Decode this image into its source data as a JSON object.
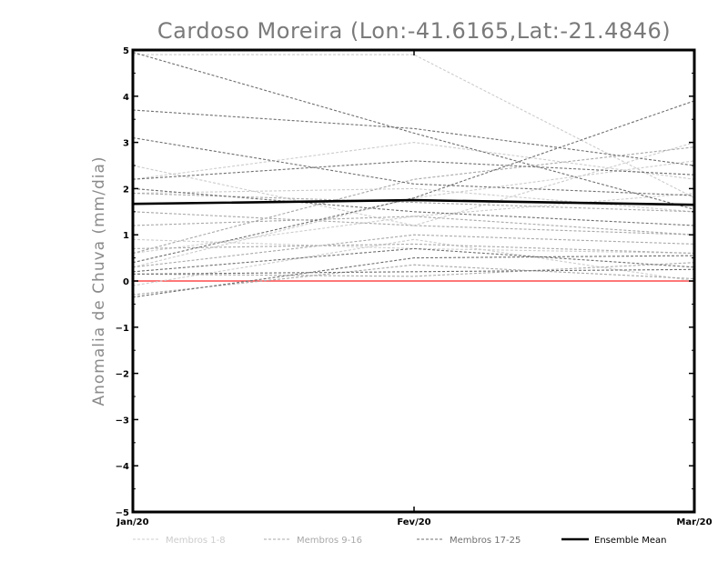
{
  "chart_data": {
    "type": "line",
    "title": "Cardoso Moreira (Lon:-41.6165,Lat:-21.4846)",
    "xlabel": "",
    "ylabel": "Anomalia de Chuva (mm/dia)",
    "categories": [
      "Jan/20",
      "Fev/20",
      "Mar/20"
    ],
    "ylim": [
      -5,
      5
    ],
    "yticks": [
      5,
      4,
      3,
      2,
      1,
      0,
      -1,
      -2,
      -3,
      -4,
      -5
    ],
    "ytick_labels": [
      "5",
      "4",
      "3",
      "2",
      "1",
      "0",
      "−1",
      "−2",
      "−3",
      "−4",
      "−5"
    ],
    "grid": false,
    "zero_line_color": "#ff4a4a",
    "groups": [
      {
        "key": "g1",
        "label": "Membros 1-8",
        "color": "#cccccc",
        "dashed": true
      },
      {
        "key": "g2",
        "label": "Membros 9-16",
        "color": "#a8a8a8",
        "dashed": true
      },
      {
        "key": "g3",
        "label": "Membros 17-25",
        "color": "#6f6f6f",
        "dashed": true
      },
      {
        "key": "mean",
        "label": "Ensemble Mean",
        "color": "#000000",
        "dashed": false
      }
    ],
    "series": [
      {
        "group": "g1",
        "values": [
          2.5,
          1.2,
          3.0
        ]
      },
      {
        "group": "g1",
        "values": [
          2.2,
          3.0,
          2.2
        ]
      },
      {
        "group": "g1",
        "values": [
          0.9,
          0.7,
          0.6
        ]
      },
      {
        "group": "g1",
        "values": [
          -0.1,
          0.9,
          0.0
        ]
      },
      {
        "group": "g1",
        "values": [
          0.6,
          1.4,
          1.9
        ]
      },
      {
        "group": "g1",
        "values": [
          4.9,
          4.9,
          1.8
        ]
      },
      {
        "group": "g1",
        "values": [
          0.3,
          1.8,
          2.6
        ]
      },
      {
        "group": "g1",
        "values": [
          1.9,
          2.0,
          1.5
        ]
      },
      {
        "group": "g2",
        "values": [
          0.7,
          0.8,
          0.6
        ]
      },
      {
        "group": "g2",
        "values": [
          1.2,
          1.4,
          1.0
        ]
      },
      {
        "group": "g2",
        "values": [
          0.3,
          1.0,
          0.8
        ]
      },
      {
        "group": "g2",
        "values": [
          0.15,
          0.1,
          0.4
        ]
      },
      {
        "group": "g2",
        "values": [
          1.9,
          1.7,
          1.5
        ]
      },
      {
        "group": "g2",
        "values": [
          -0.3,
          0.35,
          0.05
        ]
      },
      {
        "group": "g2",
        "values": [
          1.5,
          1.2,
          1.0
        ]
      },
      {
        "group": "g2",
        "values": [
          0.6,
          2.2,
          2.9
        ]
      },
      {
        "group": "g3",
        "values": [
          4.95,
          3.2,
          1.55
        ]
      },
      {
        "group": "g3",
        "values": [
          3.7,
          3.3,
          2.5
        ]
      },
      {
        "group": "g3",
        "values": [
          3.1,
          2.1,
          1.85
        ]
      },
      {
        "group": "g3",
        "values": [
          2.2,
          2.6,
          2.3
        ]
      },
      {
        "group": "g3",
        "values": [
          2.0,
          1.5,
          1.2
        ]
      },
      {
        "group": "g3",
        "values": [
          0.4,
          1.8,
          3.9
        ]
      },
      {
        "group": "g3",
        "values": [
          0.2,
          0.7,
          0.3
        ]
      },
      {
        "group": "g3",
        "values": [
          -0.35,
          0.5,
          0.55
        ]
      },
      {
        "group": "g3",
        "values": [
          0.15,
          0.2,
          0.25
        ]
      },
      {
        "group": "mean",
        "values": [
          1.67,
          1.75,
          1.65
        ]
      }
    ]
  }
}
